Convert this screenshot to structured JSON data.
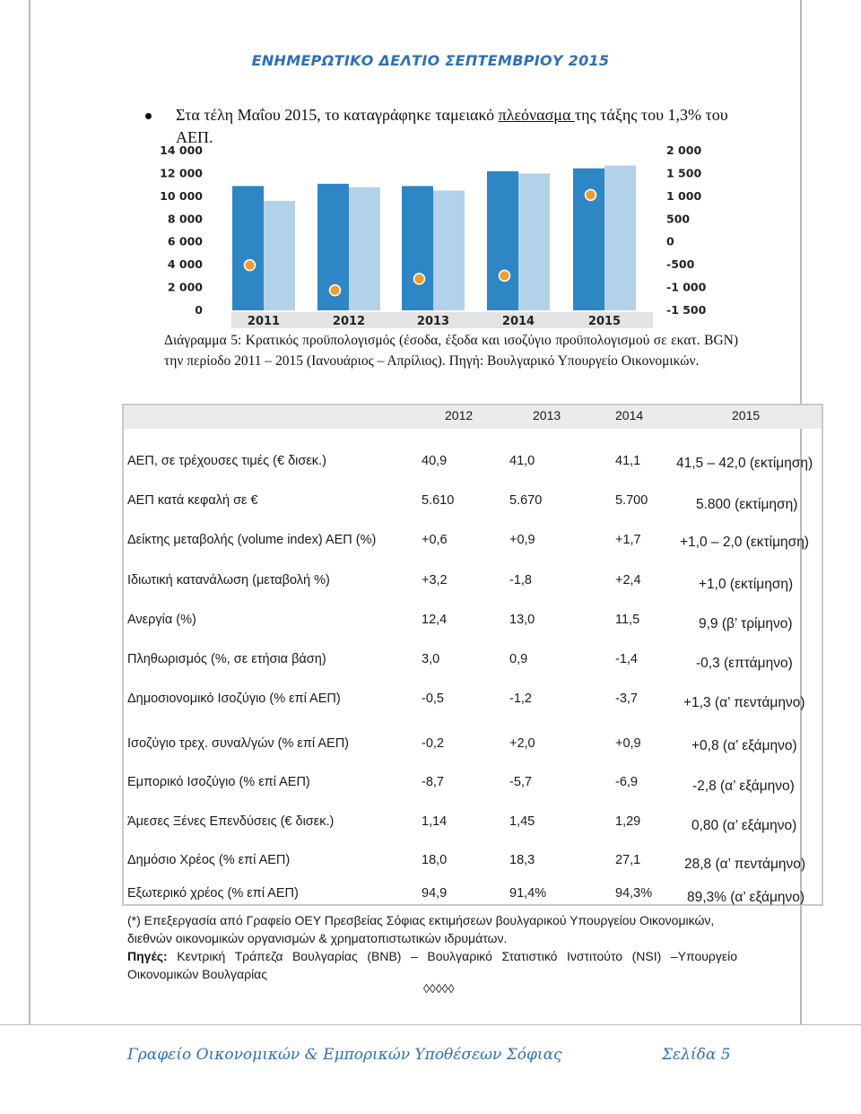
{
  "header": {
    "title": "ΕΝΗΜΕΡΩΤΙΚΟ ΔΕΛΤΙΟ ΣΕΠΤΕΜΒΡΙΟΥ 2015"
  },
  "bullet": {
    "before": "Στα τέλη Μαΐου 2015, το καταγράφηκε ταμειακό ",
    "underlined": "πλεόνασμα ",
    "after": "της τάξης του 1,3% του ΑΕΠ."
  },
  "chart_data": {
    "type": "bar",
    "categories": [
      "2011",
      "2012",
      "2013",
      "2014",
      "2015"
    ],
    "series": [
      {
        "kind": "bar",
        "axis": "left",
        "color": "#2f86c4",
        "values": [
          10900,
          11100,
          10900,
          12200,
          12450
        ]
      },
      {
        "kind": "bar",
        "axis": "left",
        "color": "#b2d2ea",
        "values": [
          9600,
          10800,
          10500,
          12000,
          12700
        ]
      },
      {
        "kind": "point",
        "axis": "right",
        "color": "#f39c32",
        "values": [
          -510,
          -1060,
          -810,
          -740,
          1030
        ]
      }
    ],
    "left_axis": {
      "ylim": [
        0,
        14000
      ],
      "ticks": [
        "14 000",
        "12 000",
        "10 000",
        "8 000",
        "6 000",
        "4 000",
        "2 000",
        "0"
      ]
    },
    "right_axis": {
      "ylim": [
        -1500,
        2000
      ],
      "ticks": [
        "2 000",
        "1 500",
        "1 000",
        "500",
        "0",
        "-500",
        "-1 000",
        "-1 500"
      ]
    },
    "grid": false
  },
  "caption": "Διάγραμμα 5: Κρατικός προϋπολογισμός (έσοδα, έξοδα και ισοζύγιο προϋπολογισμού σε εκατ. BGN) την περίοδο 2011 – 2015 (Ιανουάριος – Απρίλιος). Πηγή: Βουλγαρικό Υπουργείο Οικονομικών.",
  "table": {
    "years": [
      "2012",
      "2013",
      "2014",
      "2015"
    ],
    "rows": [
      {
        "label": "ΑΕΠ, σε τρέχουσες τιμές (€ δισεκ.)",
        "v2012": "40,9",
        "v2013": "41,0",
        "v2014": "41,1",
        "v2015": "41,5 – 42,0 (εκτίμηση)"
      },
      {
        "label": "ΑΕΠ κατά κεφαλή σε €",
        "v2012": "5.610",
        "v2013": "5.670",
        "v2014": "5.700",
        "v2015": "5.800 (εκτίμηση)"
      },
      {
        "label": "Δείκτης μεταβολής (volume index) ΑΕΠ (%)",
        "v2012": "+0,6",
        "v2013": "+0,9",
        "v2014": "+1,7",
        "v2015": "+1,0 – 2,0 (εκτίμηση)"
      },
      {
        "label": "Ιδιωτική κατανάλωση (μεταβολή %)",
        "v2012": "+3,2",
        "v2013": "-1,8",
        "v2014": "+2,4",
        "v2015": "+1,0 (εκτίμηση)"
      },
      {
        "label": "Ανεργία (%)",
        "v2012": "12,4",
        "v2013": "13,0",
        "v2014": "11,5",
        "v2015": "9,9 (β’ τρίμηνο)"
      },
      {
        "label": "Πληθωρισμός (%, σε ετήσια βάση)",
        "v2012": "3,0",
        "v2013": "0,9",
        "v2014": "-1,4",
        "v2015": "-0,3 (επτάμηνο)"
      },
      {
        "label": "Δημοσιονομικό Ισοζύγιο (% επί ΑΕΠ)",
        "v2012": "-0,5",
        "v2013": "-1,2",
        "v2014": "-3,7",
        "v2015": "+1,3 (α’ πεντάμηνο)"
      },
      {
        "label": "Ισοζύγιο τρεχ. συναλ/γών (% επί ΑΕΠ)",
        "v2012": "-0,2",
        "v2013": "+2,0",
        "v2014": "+0,9",
        "v2015": "+0,8 (α’ εξάμηνο)"
      },
      {
        "label": "Εμπορικό Ισοζύγιο (% επί ΑΕΠ)",
        "v2012": "-8,7",
        "v2013": "-5,7",
        "v2014": "-6,9",
        "v2015": "-2,8 (α’ εξάμηνο)"
      },
      {
        "label": "Άμεσες Ξένες Επενδύσεις (€ δισεκ.)",
        "v2012": "1,14",
        "v2013": "1,45",
        "v2014": "1,29",
        "v2015": "0,80 (α’ εξάμηνο)"
      },
      {
        "label": "Δημόσιο Χρέος (% επί ΑΕΠ)",
        "v2012": "18,0",
        "v2013": "18,3",
        "v2014": "27,1",
        "v2015": "28,8 (α’ πεντάμηνο)"
      },
      {
        "label": "Εξωτερικό χρέος (% επί ΑΕΠ)",
        "v2012": "94,9",
        "v2013": "91,4%",
        "v2014": "94,3%",
        "v2015": "89,3% (α’ εξάμηνο)"
      }
    ]
  },
  "notes": {
    "note": "(*) Επεξεργασία από Γραφείο ΟΕΥ Πρεσβείας Σόφιας εκτιμήσεων βουλγαρικού Υπουργείου Οικονομικών, διεθνών οικονομικών οργανισμών & χρηματοπιστωτικών ιδρυμάτων.",
    "source_label": "Πηγές:",
    "source_text": " Κεντρική Τράπεζα Βουλγαρίας (BNB) – Βουλγαρικό Στατιστικό Ινστιτούτο (NSI) –Υπουργείο Οικονομικών Βουλγαρίας",
    "diamonds": "◊◊◊◊◊"
  },
  "footer": {
    "left": "Γραφείο Οικονομικών & Εμπορικών Υποθέσεων Σόφιας",
    "right": "Σελίδα 5"
  }
}
